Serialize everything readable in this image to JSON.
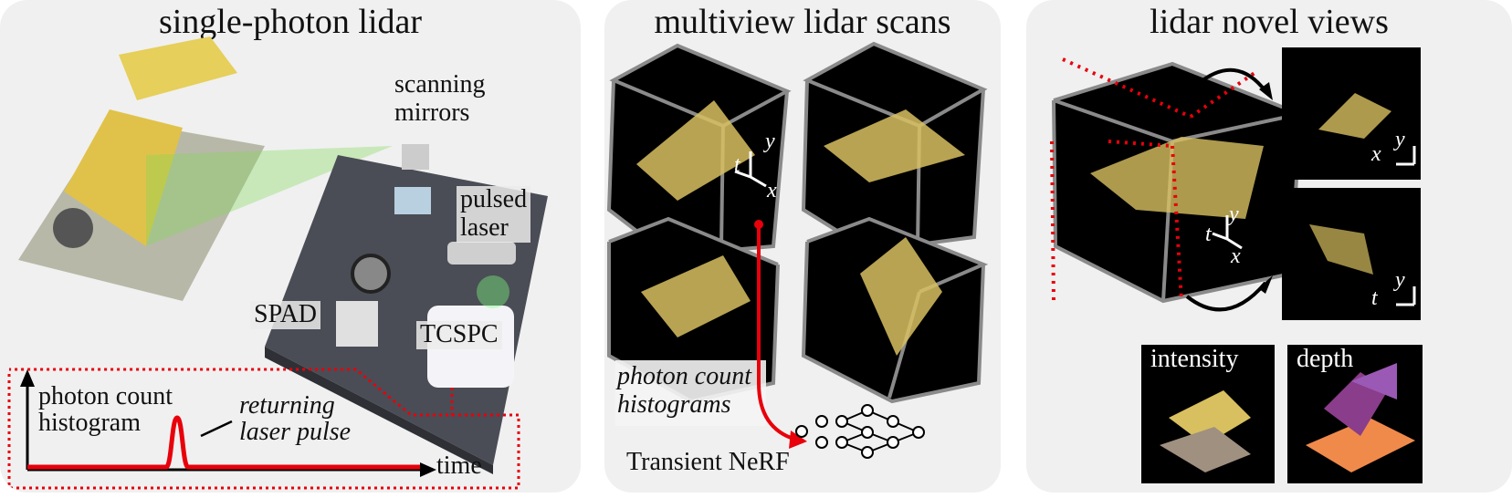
{
  "panels": {
    "lidar": {
      "title": "single-photon lidar",
      "scanning_mirrors": "scanning\nmirrors",
      "pulsed_laser": "pulsed\nlaser",
      "spad": "SPAD",
      "tcspc": "TCSPC",
      "histogram": "photon count\nhistogram",
      "returning": "returning\nlaser pulse",
      "time": "time"
    },
    "scans": {
      "title": "multiview lidar scans",
      "histograms": "photon count\nhistograms",
      "nerf": "Transient NeRF",
      "axis_t": "t",
      "axis_y": "y",
      "axis_x": "x"
    },
    "novel": {
      "title": "lidar novel views",
      "intensity": "intensity",
      "depth": "depth",
      "axis_t": "t",
      "axis_y": "y",
      "axis_x": "x"
    }
  },
  "colors": {
    "panel_bg": "#f0f0f0",
    "red": "#e8000b",
    "cube_edge": "#8a8a8a",
    "lego": "#e6c84a"
  }
}
